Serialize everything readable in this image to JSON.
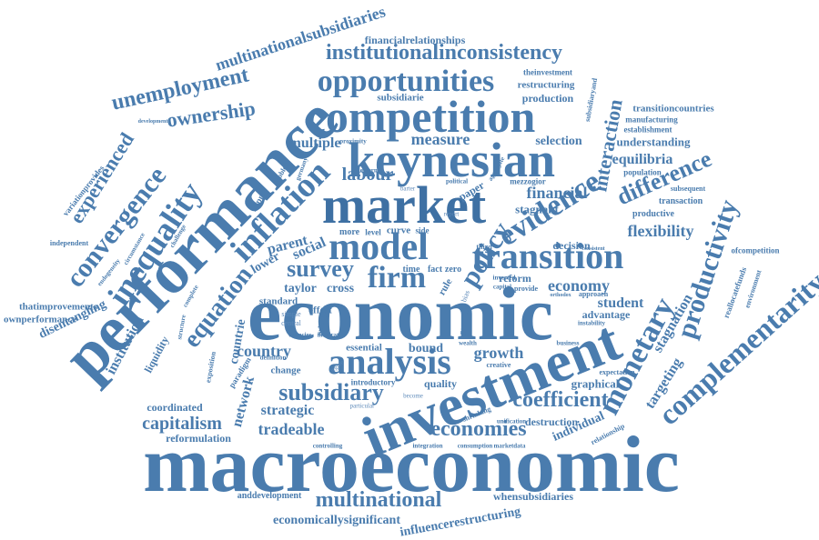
{
  "words": {
    "macroeconomic": "macroeconomic",
    "economic": "economic",
    "performance": "performance",
    "investment": "investment",
    "market": "market",
    "keynesian": "keynesian",
    "competition": "competition",
    "model": "model",
    "transition": "transition",
    "analysis": "analysis",
    "inflation": "inflation",
    "inequality": "inequality",
    "convergence": "convergence",
    "opportunities": "opportunities",
    "institutionalinconsistency": "institutionalinconsistency",
    "complementarity": "complementarity",
    "monetary": "monetary",
    "productivity": "productivity",
    "evidence": "evidence",
    "firm": "firm",
    "policy": "policy",
    "equation": "equation",
    "unemployment": "unemployment",
    "ownership": "ownership",
    "multinational": "multinational",
    "subsidiary": "subsidiary",
    "coefficient": "coefficient",
    "economies": "economies",
    "capitalism": "capitalism",
    "survey": "survey",
    "difference": "difference",
    "experienced": "experienced",
    "multinationalsubsidiaries": "multinationalsubsidiaries",
    "financialrelationships": "financialrelationships",
    "labour": "labour",
    "financial": "financial",
    "measure": "measure",
    "interaction": "interaction",
    "equilibria": "equilibria",
    "flexibility": "flexibility",
    "economy": "economy",
    "student": "student",
    "stagnation": "stagnation",
    "targeting": "targeting",
    "growth": "growth",
    "country": "country",
    "countrie": "countrie",
    "tradeable": "tradeable",
    "strategic": "strategic",
    "network": "network",
    "institution": "institution",
    "disentangling": "disentangling",
    "reformulation": "reformulation",
    "coordinated": "coordinated",
    "economicallysignificant": "economicallysignificant",
    "influencerestructuring": "influencerestructuring",
    "whensubsidiaries": "whensubsidiaries",
    "anddevelopment": "anddevelopment",
    "transitioncountries": "transitioncountries",
    "understanding": "understanding",
    "selection": "selection",
    "multiple": "multiple",
    "production": "production",
    "restructuring": "restructuring",
    "theinvestment": "theinvestment",
    "subsidiarie": "subsidiarie",
    "parent": "parent",
    "social": "social",
    "lower": "lower",
    "taylor": "taylor",
    "cross": "cross",
    "standard": "standard",
    "bound": "bound",
    "essential": "essential",
    "quality": "quality",
    "graphical": "graphical",
    "individual": "individual",
    "destruction": "destruction",
    "advantage": "advantage",
    "approach": "approach",
    "reform": "reform",
    "stagnant": "stagnant",
    "decision": "decision",
    "productive": "productive",
    "transaction": "transaction",
    "subsequent": "subsequent",
    "population": "population",
    "establishment": "establishment",
    "manufacturing": "manufacturing",
    "reallocatefunds": "reallocatefunds",
    "ofcompetition": "ofcompetition",
    "environment": "environment",
    "expectation": "expectation",
    "business": "business",
    "instability": "instability",
    "relationship": "relationship",
    "shrinking": "shrinking",
    "unification": "unification",
    "consumption": "consumption",
    "marketdata": "marketdata",
    "integration": "integration",
    "controlling": "controlling",
    "introductory": "introductory",
    "german": "german",
    "curve": "curve",
    "paper": "paper",
    "effect": "effect",
    "change": "change",
    "liquidity": "liquidity",
    "paradigm": "paradigm",
    "exposition": "exposition",
    "thatimprovements": "thatimprovements",
    "ownperformance": "ownperformance",
    "independent": "independent",
    "variationprovides": "variationprovides",
    "endogeneity": "endogeneity",
    "circumstance": "circumstance",
    "challenge": "challenge",
    "development": "development",
    "subsidiaryand": "subsidiaryand",
    "mezzogior": "mezzogior",
    "simple": "simple",
    "central": "central",
    "principal": "principal",
    "more": "more",
    "level": "level",
    "time": "time",
    "fact": "fact",
    "zero": "zero",
    "rule": "rule",
    "supply": "supply",
    "problem": "problem",
    "germany": "germany",
    "agencies": "agencies",
    "illustrate": "illustrate",
    "definition": "definition",
    "proximity": "proximity",
    "external": "external",
    "political": "political",
    "aggregate": "aggregate",
    "side": "side",
    "third": "third",
    "creative": "creative",
    "wealth": "wealth",
    "provide": "provide",
    "capital": "capital",
    "inverted": "inverted",
    "orthodox": "orthodox",
    "consistent": "consistent",
    "complete": "complete",
    "structure": "structure",
    "degree": "degree",
    "particular": "particular",
    "become": "become",
    "report": "report",
    "barter": "barter",
    "bias": "bias"
  },
  "palette": {
    "primary": "#4a7cae",
    "dark": "#3e70a3",
    "light": "#5b88b8",
    "background": "#ffffff"
  }
}
